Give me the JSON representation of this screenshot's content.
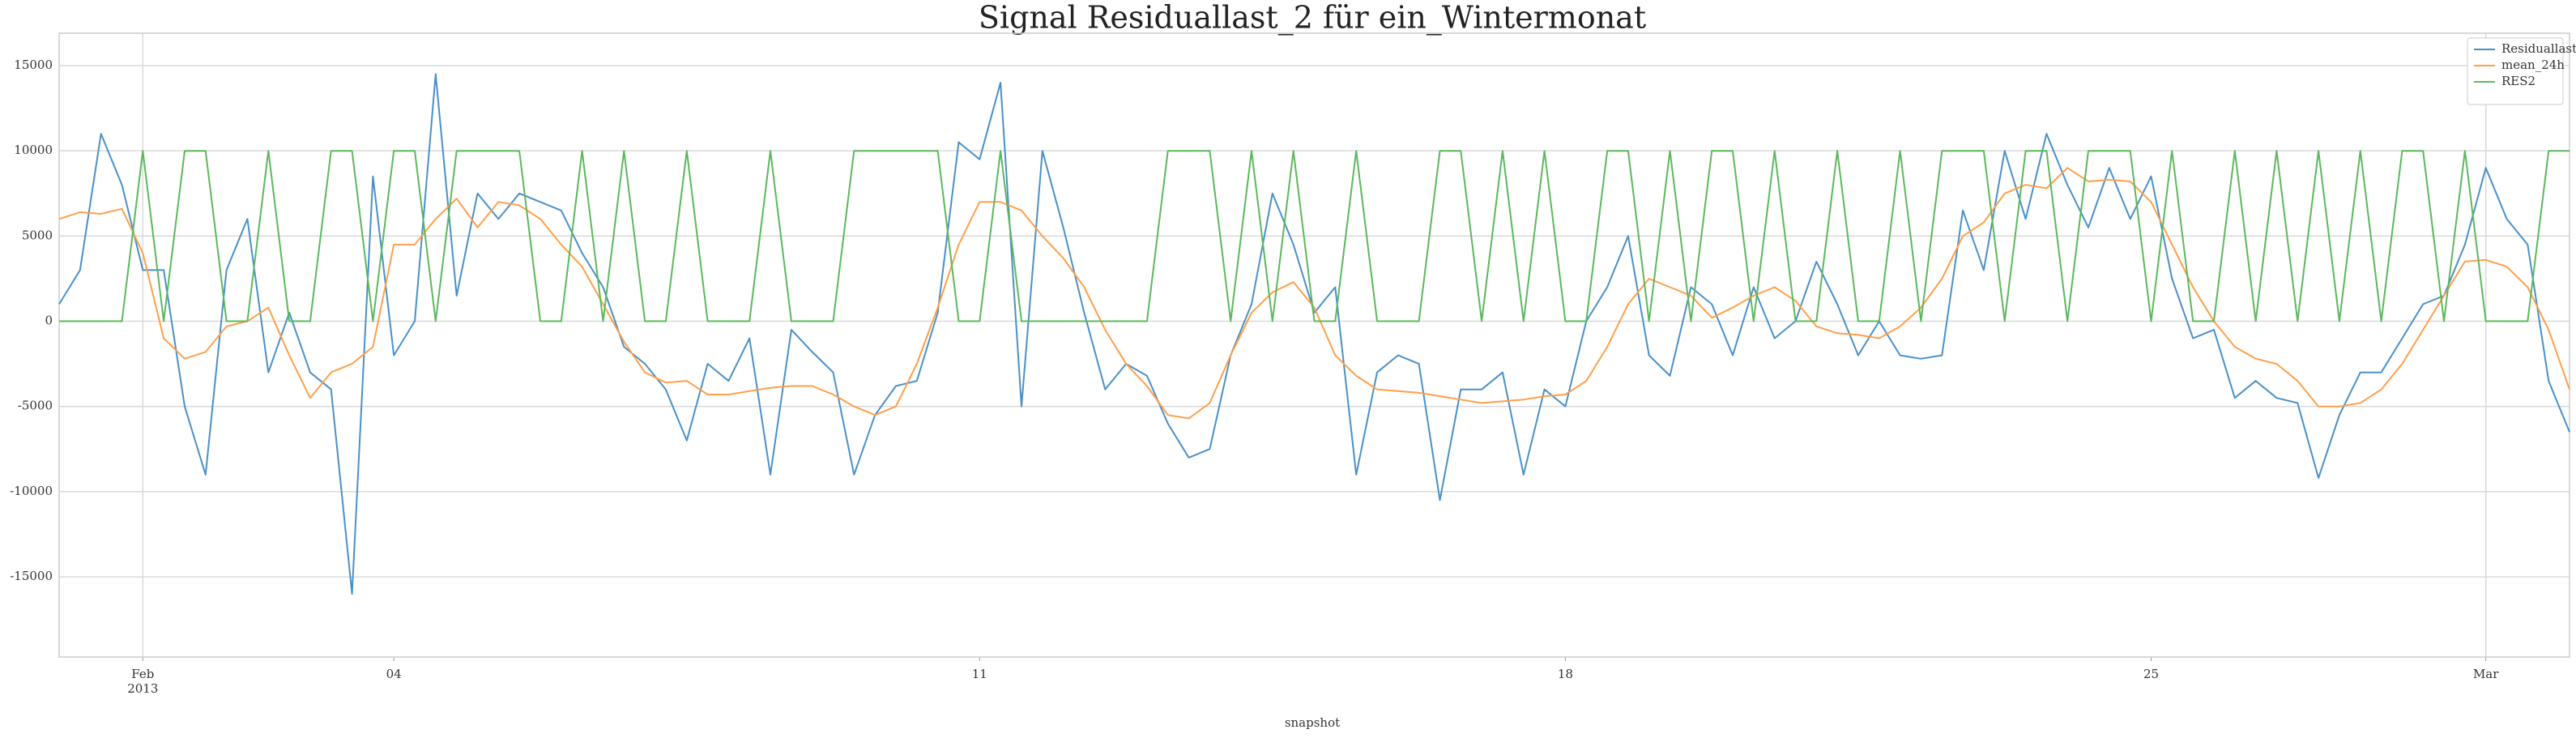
{
  "chart_data": {
    "type": "line",
    "title": "Signal Residuallast_2 für ein_Wintermonat",
    "xlabel": "snapshot",
    "x": [
      "2013-01-31 00:00",
      "2013-01-31 06:00",
      "2013-01-31 12:00",
      "2013-01-31 18:00",
      "2013-02-01 00:00",
      "2013-02-01 06:00",
      "2013-02-01 12:00",
      "2013-02-01 18:00",
      "2013-02-02 00:00",
      "2013-02-02 06:00",
      "2013-02-02 12:00",
      "2013-02-02 18:00",
      "2013-02-03 00:00",
      "2013-02-03 06:00",
      "2013-02-03 12:00",
      "2013-02-03 18:00",
      "2013-02-04 00:00",
      "2013-02-04 06:00",
      "2013-02-04 12:00",
      "2013-02-04 18:00",
      "2013-02-05 00:00",
      "2013-02-05 06:00",
      "2013-02-05 12:00",
      "2013-02-05 18:00",
      "2013-02-06 00:00",
      "2013-02-06 06:00",
      "2013-02-06 12:00",
      "2013-02-06 18:00",
      "2013-02-07 00:00",
      "2013-02-07 06:00",
      "2013-02-07 12:00",
      "2013-02-07 18:00",
      "2013-02-08 00:00",
      "2013-02-08 06:00",
      "2013-02-08 12:00",
      "2013-02-08 18:00",
      "2013-02-09 00:00",
      "2013-02-09 06:00",
      "2013-02-09 12:00",
      "2013-02-09 18:00",
      "2013-02-10 00:00",
      "2013-02-10 06:00",
      "2013-02-10 12:00",
      "2013-02-10 18:00",
      "2013-02-11 00:00",
      "2013-02-11 06:00",
      "2013-02-11 12:00",
      "2013-02-11 18:00",
      "2013-02-12 00:00",
      "2013-02-12 06:00",
      "2013-02-12 12:00",
      "2013-02-12 18:00",
      "2013-02-13 00:00",
      "2013-02-13 06:00",
      "2013-02-13 12:00",
      "2013-02-13 18:00",
      "2013-02-14 00:00",
      "2013-02-14 06:00",
      "2013-02-14 12:00",
      "2013-02-14 18:00",
      "2013-02-15 00:00",
      "2013-02-15 06:00",
      "2013-02-15 12:00",
      "2013-02-15 18:00",
      "2013-02-16 00:00",
      "2013-02-16 06:00",
      "2013-02-16 12:00",
      "2013-02-16 18:00",
      "2013-02-17 00:00",
      "2013-02-17 06:00",
      "2013-02-17 12:00",
      "2013-02-17 18:00",
      "2013-02-18 00:00",
      "2013-02-18 06:00",
      "2013-02-18 12:00",
      "2013-02-18 18:00",
      "2013-02-19 00:00",
      "2013-02-19 06:00",
      "2013-02-19 12:00",
      "2013-02-19 18:00",
      "2013-02-20 00:00",
      "2013-02-20 06:00",
      "2013-02-20 12:00",
      "2013-02-20 18:00",
      "2013-02-21 00:00",
      "2013-02-21 06:00",
      "2013-02-21 12:00",
      "2013-02-21 18:00",
      "2013-02-22 00:00",
      "2013-02-22 06:00",
      "2013-02-22 12:00",
      "2013-02-22 18:00",
      "2013-02-23 00:00",
      "2013-02-23 06:00",
      "2013-02-23 12:00",
      "2013-02-23 18:00",
      "2013-02-24 00:00",
      "2013-02-24 06:00",
      "2013-02-24 12:00",
      "2013-02-24 18:00",
      "2013-02-25 00:00",
      "2013-02-25 06:00",
      "2013-02-25 12:00",
      "2013-02-25 18:00",
      "2013-02-26 00:00",
      "2013-02-26 06:00",
      "2013-02-26 12:00",
      "2013-02-26 18:00",
      "2013-02-27 00:00",
      "2013-02-27 06:00",
      "2013-02-27 12:00",
      "2013-02-27 18:00",
      "2013-02-28 00:00",
      "2013-02-28 06:00",
      "2013-02-28 12:00",
      "2013-02-28 18:00",
      "2013-03-01 00:00",
      "2013-03-01 06:00",
      "2013-03-01 12:00",
      "2013-03-01 18:00",
      "2013-03-02 00:00"
    ],
    "series": [
      {
        "name": "Residuallast",
        "color": "#4a90c8",
        "values": [
          1000,
          3000,
          11000,
          8000,
          3000,
          3000,
          -5000,
          -9000,
          3000,
          6000,
          -3000,
          500,
          -3000,
          -4000,
          -16000,
          8500,
          -2000,
          0,
          14500,
          1500,
          7500,
          6000,
          7500,
          7000,
          6500,
          4000,
          2000,
          -1500,
          -2500,
          -4000,
          -7000,
          -2500,
          -3500,
          -1000,
          -9000,
          -500,
          -1800,
          -3000,
          -9000,
          -5500,
          -3800,
          -3500,
          500,
          10500,
          9500,
          14000,
          -5000,
          10000,
          5500,
          500,
          -4000,
          -2500,
          -3200,
          -6000,
          -8000,
          -7500,
          -2000,
          1000,
          7500,
          4500,
          500,
          2000,
          -9000,
          -3000,
          -2000,
          -2500,
          -10500,
          -4000,
          -4000,
          -3000,
          -9000,
          -4000,
          -5000,
          0,
          2000,
          5000,
          -2000,
          -3200,
          2000,
          1000,
          -2000,
          2000,
          -1000,
          0,
          3500,
          1000,
          -2000,
          0,
          -2000,
          -2200,
          -2000,
          6500,
          3000,
          10000,
          6000,
          11000,
          8000,
          5500,
          9000,
          6000,
          8500,
          2500,
          -1000,
          -500,
          -4500,
          -3500,
          -4500,
          -4800,
          -9200,
          -5500,
          -3000,
          -3000,
          -1000,
          1000,
          1500,
          4500,
          9000,
          6000,
          4500,
          -3500,
          -6500
        ]
      },
      {
        "name": "mean_24h",
        "color": "#ff9f4a",
        "values": [
          6000,
          6400,
          6300,
          6600,
          4000,
          -1000,
          -2200,
          -1800,
          -300,
          0,
          800,
          -2000,
          -4500,
          -3000,
          -2500,
          -1500,
          4500,
          4500,
          6000,
          7200,
          5500,
          7000,
          6800,
          6000,
          4500,
          3200,
          1000,
          -1200,
          -3000,
          -3600,
          -3500,
          -4300,
          -4300,
          -4100,
          -3900,
          -3800,
          -3800,
          -4300,
          -5000,
          -5500,
          -5000,
          -2500,
          800,
          4500,
          7000,
          7000,
          6500,
          5000,
          3700,
          2000,
          -500,
          -2500,
          -3800,
          -5500,
          -5700,
          -4800,
          -2000,
          500,
          1700,
          2300,
          800,
          -2000,
          -3200,
          -4000,
          -4100,
          -4200,
          -4400,
          -4600,
          -4800,
          -4700,
          -4600,
          -4400,
          -4300,
          -3500,
          -1500,
          1000,
          2500,
          2000,
          1500,
          200,
          800,
          1500,
          2000,
          1200,
          -300,
          -700,
          -800,
          -1000,
          -300,
          800,
          2500,
          5000,
          5800,
          7500,
          8000,
          7800,
          9000,
          8200,
          8300,
          8200,
          7000,
          4500,
          2000,
          0,
          -1500,
          -2200,
          -2500,
          -3500,
          -5000,
          -5000,
          -4800,
          -4000,
          -2500,
          -500,
          1500,
          3500,
          3600,
          3200,
          2000,
          -500,
          -4000
        ]
      },
      {
        "name": "RES2",
        "color": "#5cb85c",
        "values": [
          0,
          0,
          0,
          0,
          10000,
          0,
          10000,
          10000,
          0,
          0,
          10000,
          0,
          0,
          10000,
          10000,
          0,
          10000,
          10000,
          0,
          10000,
          10000,
          10000,
          10000,
          0,
          0,
          10000,
          0,
          10000,
          0,
          0,
          10000,
          0,
          0,
          0,
          10000,
          0,
          0,
          0,
          10000,
          10000,
          10000,
          10000,
          10000,
          0,
          0,
          10000,
          0,
          0,
          0,
          0,
          0,
          0,
          0,
          10000,
          10000,
          10000,
          0,
          10000,
          0,
          10000,
          0,
          0,
          10000,
          0,
          0,
          0,
          10000,
          10000,
          0,
          10000,
          0,
          10000,
          0,
          0,
          10000,
          10000,
          0,
          10000,
          0,
          10000,
          10000,
          0,
          10000,
          0,
          0,
          10000,
          0,
          0,
          10000,
          0,
          10000,
          10000,
          10000,
          0,
          10000,
          10000,
          0,
          10000,
          10000,
          10000,
          0,
          10000,
          0,
          0,
          10000,
          0,
          10000,
          0,
          10000,
          0,
          10000,
          0,
          10000,
          10000,
          0,
          10000,
          0,
          0,
          0,
          10000,
          10000
        ]
      }
    ],
    "xlim": [
      "2013-01-31 00:00",
      "2013-03-02 00:00"
    ],
    "xticks": [
      {
        "value": "2013-02-01 00:00",
        "label": "Feb\n2013"
      },
      {
        "value": "2013-02-04 00:00",
        "label": "04"
      },
      {
        "value": "2013-02-11 00:00",
        "label": "11"
      },
      {
        "value": "2013-02-18 00:00",
        "label": "18"
      },
      {
        "value": "2013-02-25 00:00",
        "label": "25"
      },
      {
        "value": "2013-03-01 00:00",
        "label": "Mar"
      }
    ],
    "xgrid_ticks": [
      0,
      5
    ],
    "ylim": [
      -19700,
      16900
    ],
    "yticks": [
      -15000,
      -10000,
      -5000,
      0,
      5000,
      10000,
      15000
    ],
    "grid": true,
    "legend": "upper right"
  }
}
